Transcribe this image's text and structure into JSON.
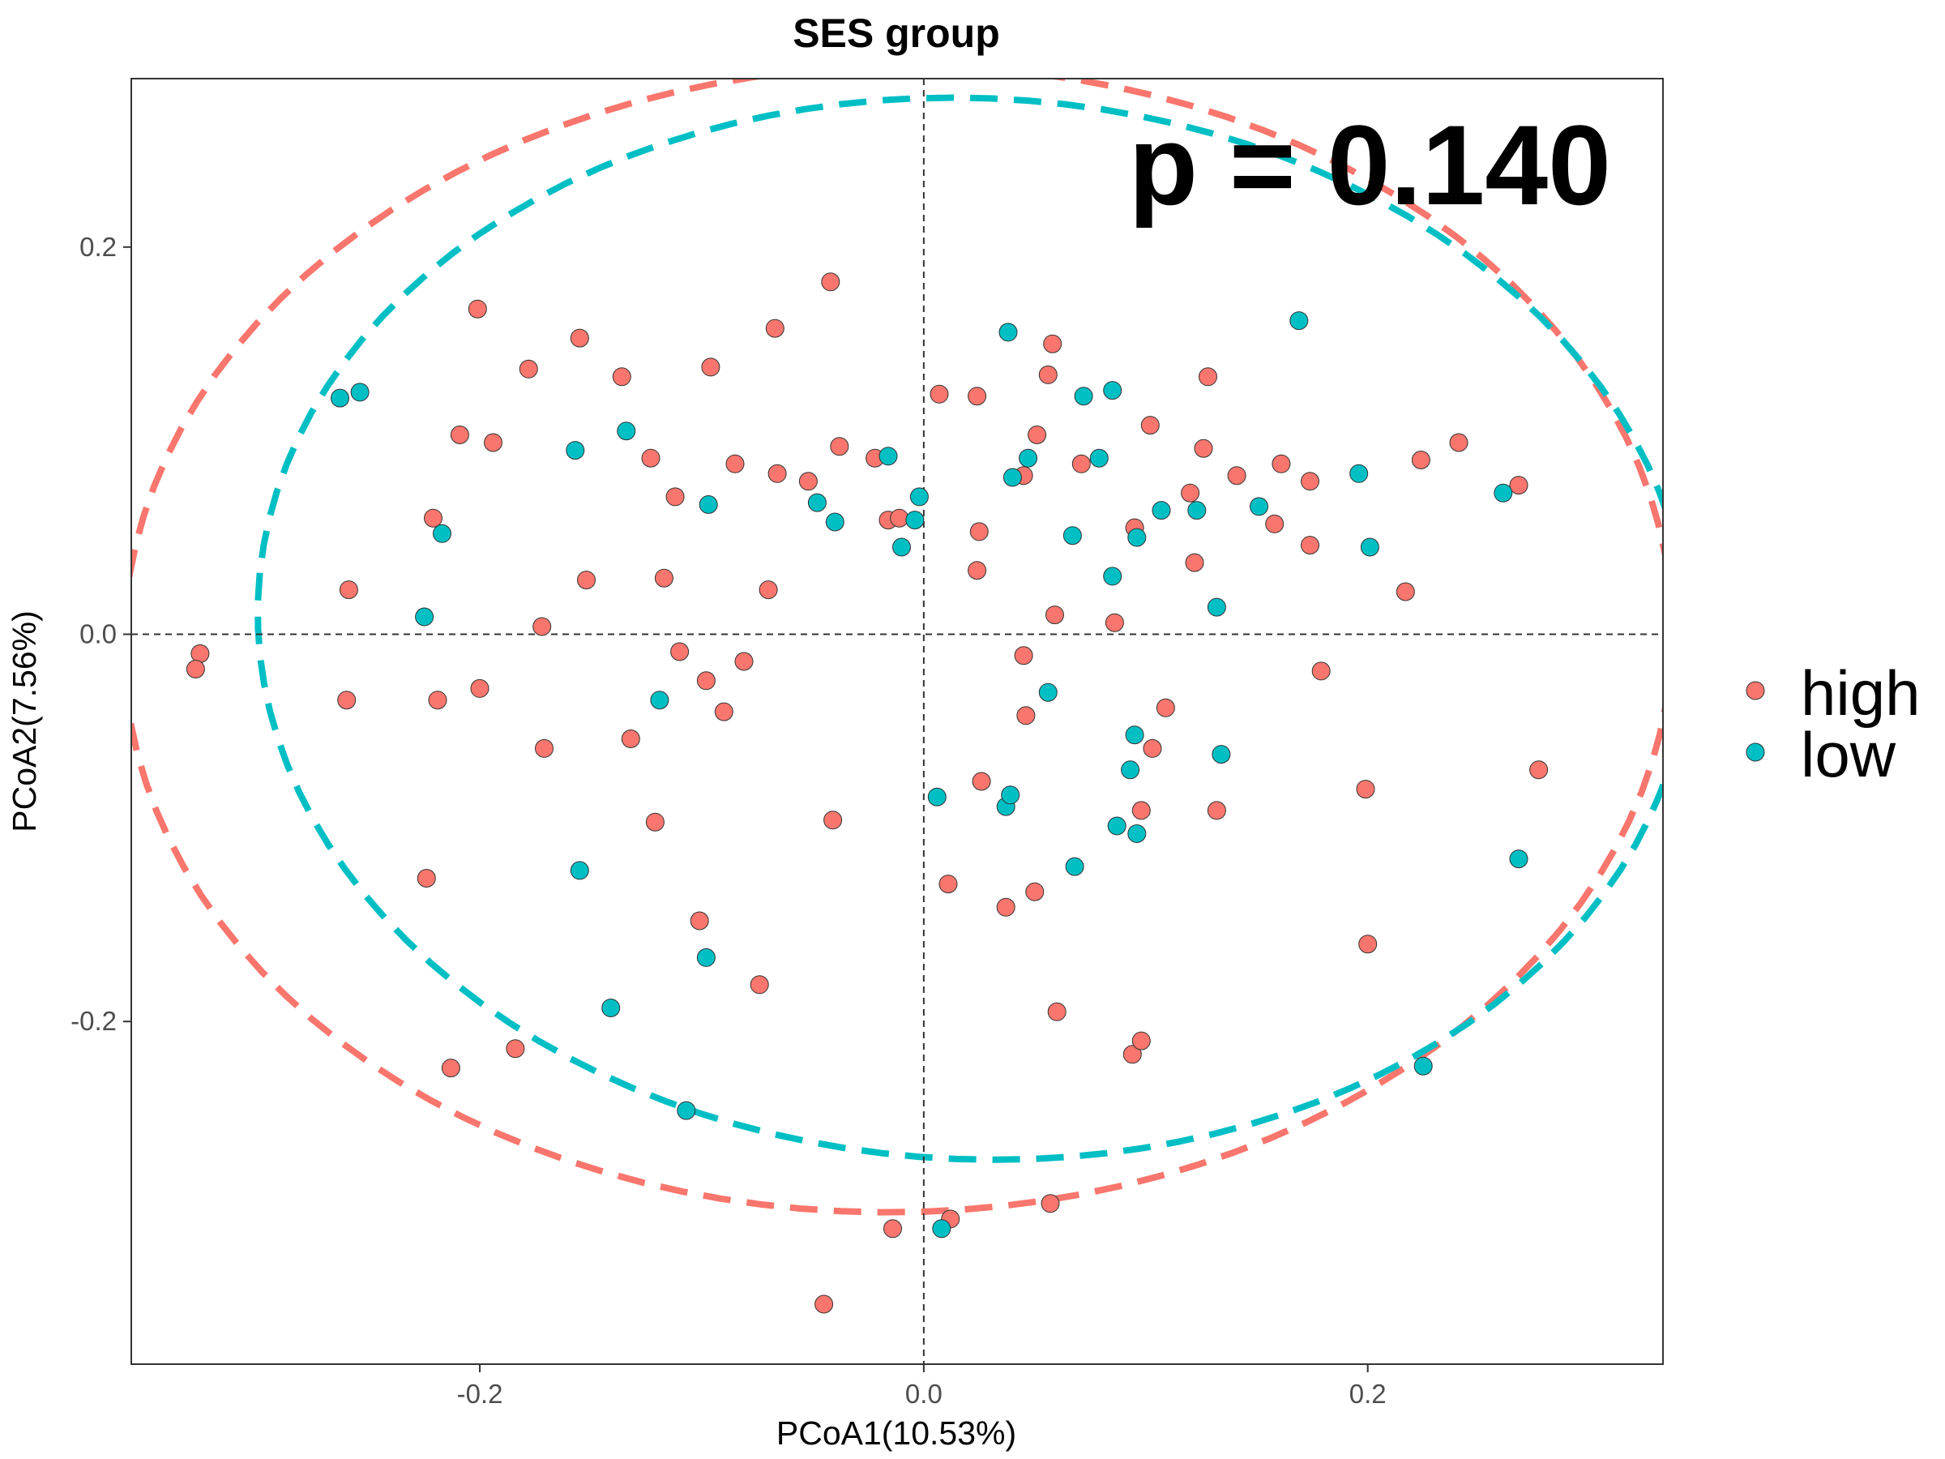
{
  "chart_data": {
    "type": "scatter",
    "title": "SES group",
    "xlabel": "PCoA1(10.53%)",
    "ylabel": "PCoA2(7.56%)",
    "xlim": [
      -0.357,
      0.333
    ],
    "ylim": [
      -0.377,
      0.287
    ],
    "x_ticks": [
      -0.2,
      0.0,
      0.2
    ],
    "x_tick_labels": [
      "-0.2",
      "0.0",
      "0.2"
    ],
    "y_ticks": [
      -0.2,
      0.0,
      0.2
    ],
    "y_tick_labels": [
      "-0.2",
      "0.0",
      "0.2"
    ],
    "reference_lines": {
      "x": 0,
      "y": 0,
      "style": "dashed"
    },
    "grid": false,
    "legend_position": "right",
    "annotation": "p = 0.140",
    "series": [
      {
        "name": "high",
        "color": "#F8766D",
        "points": [
          [
            -0.326,
            -0.01
          ],
          [
            -0.328,
            -0.018
          ],
          [
            -0.259,
            0.023
          ],
          [
            -0.26,
            -0.034
          ],
          [
            -0.221,
            0.06
          ],
          [
            -0.219,
            -0.034
          ],
          [
            -0.224,
            -0.126
          ],
          [
            -0.213,
            -0.224
          ],
          [
            -0.209,
            0.103
          ],
          [
            -0.201,
            0.168
          ],
          [
            -0.2,
            -0.028
          ],
          [
            -0.194,
            0.099
          ],
          [
            -0.184,
            -0.214
          ],
          [
            -0.178,
            0.137
          ],
          [
            -0.172,
            0.004
          ],
          [
            -0.171,
            -0.059
          ],
          [
            -0.155,
            0.153
          ],
          [
            -0.152,
            0.028
          ],
          [
            -0.136,
            0.133
          ],
          [
            -0.132,
            -0.054
          ],
          [
            -0.123,
            0.091
          ],
          [
            -0.121,
            -0.097
          ],
          [
            -0.117,
            0.029
          ],
          [
            -0.112,
            0.071
          ],
          [
            -0.11,
            -0.009
          ],
          [
            -0.101,
            -0.148
          ],
          [
            -0.098,
            -0.024
          ],
          [
            -0.096,
            0.138
          ],
          [
            -0.09,
            -0.04
          ],
          [
            -0.085,
            0.088
          ],
          [
            -0.081,
            -0.014
          ],
          [
            -0.074,
            -0.181
          ],
          [
            -0.07,
            0.023
          ],
          [
            -0.067,
            0.158
          ],
          [
            -0.066,
            0.083
          ],
          [
            -0.052,
            0.079
          ],
          [
            -0.045,
            -0.346
          ],
          [
            -0.042,
            0.182
          ],
          [
            -0.041,
            -0.096
          ],
          [
            -0.038,
            0.097
          ],
          [
            -0.022,
            0.091
          ],
          [
            -0.016,
            0.059
          ],
          [
            -0.011,
            0.06
          ],
          [
            -0.014,
            -0.307
          ],
          [
            0.007,
            0.124
          ],
          [
            0.011,
            -0.129
          ],
          [
            0.012,
            -0.302
          ],
          [
            0.024,
            0.123
          ],
          [
            0.024,
            0.033
          ],
          [
            0.025,
            0.053
          ],
          [
            0.026,
            -0.076
          ],
          [
            0.037,
            -0.141
          ],
          [
            0.045,
            0.082
          ],
          [
            0.045,
            -0.011
          ],
          [
            0.046,
            -0.042
          ],
          [
            0.05,
            -0.133
          ],
          [
            0.051,
            0.103
          ],
          [
            0.056,
            0.134
          ],
          [
            0.057,
            -0.294
          ],
          [
            0.058,
            0.15
          ],
          [
            0.059,
            0.01
          ],
          [
            0.06,
            -0.195
          ],
          [
            0.071,
            0.088
          ],
          [
            0.086,
            0.006
          ],
          [
            0.094,
            -0.217
          ],
          [
            0.095,
            0.055
          ],
          [
            0.098,
            -0.21
          ],
          [
            0.098,
            -0.091
          ],
          [
            0.102,
            0.108
          ],
          [
            0.103,
            -0.059
          ],
          [
            0.109,
            -0.038
          ],
          [
            0.12,
            0.073
          ],
          [
            0.122,
            0.037
          ],
          [
            0.126,
            0.096
          ],
          [
            0.128,
            0.133
          ],
          [
            0.132,
            -0.091
          ],
          [
            0.141,
            0.082
          ],
          [
            0.158,
            0.057
          ],
          [
            0.161,
            0.088
          ],
          [
            0.174,
            0.079
          ],
          [
            0.174,
            0.046
          ],
          [
            0.179,
            -0.019
          ],
          [
            0.199,
            -0.08
          ],
          [
            0.2,
            -0.16
          ],
          [
            0.217,
            0.022
          ],
          [
            0.224,
            0.09
          ],
          [
            0.241,
            0.099
          ],
          [
            0.268,
            0.077
          ],
          [
            0.277,
            -0.07
          ]
        ]
      },
      {
        "name": "low",
        "color": "#00BFC4",
        "points": [
          [
            -0.263,
            0.122
          ],
          [
            -0.254,
            0.125
          ],
          [
            -0.225,
            0.009
          ],
          [
            -0.217,
            0.052
          ],
          [
            -0.157,
            0.095
          ],
          [
            -0.155,
            -0.122
          ],
          [
            -0.141,
            -0.193
          ],
          [
            -0.134,
            0.105
          ],
          [
            -0.119,
            -0.034
          ],
          [
            -0.107,
            -0.246
          ],
          [
            -0.097,
            0.067
          ],
          [
            -0.098,
            -0.167
          ],
          [
            -0.048,
            0.068
          ],
          [
            -0.04,
            0.058
          ],
          [
            -0.016,
            0.092
          ],
          [
            -0.01,
            0.045
          ],
          [
            -0.004,
            0.059
          ],
          [
            -0.002,
            0.071
          ],
          [
            0.006,
            -0.084
          ],
          [
            0.008,
            -0.307
          ],
          [
            0.038,
            0.156
          ],
          [
            0.037,
            -0.089
          ],
          [
            0.039,
            -0.083
          ],
          [
            0.04,
            0.081
          ],
          [
            0.047,
            0.091
          ],
          [
            0.056,
            -0.03
          ],
          [
            0.067,
            0.051
          ],
          [
            0.068,
            -0.12
          ],
          [
            0.072,
            0.123
          ],
          [
            0.079,
            0.091
          ],
          [
            0.085,
            0.126
          ],
          [
            0.085,
            0.03
          ],
          [
            0.087,
            -0.099
          ],
          [
            0.093,
            -0.07
          ],
          [
            0.095,
            -0.052
          ],
          [
            0.096,
            0.05
          ],
          [
            0.096,
            -0.103
          ],
          [
            0.107,
            0.064
          ],
          [
            0.123,
            0.064
          ],
          [
            0.132,
            0.014
          ],
          [
            0.134,
            -0.062
          ],
          [
            0.151,
            0.066
          ],
          [
            0.169,
            0.162
          ],
          [
            0.196,
            0.083
          ],
          [
            0.201,
            0.045
          ],
          [
            0.225,
            -0.223
          ],
          [
            0.261,
            0.073
          ],
          [
            0.268,
            -0.116
          ]
        ]
      }
    ]
  }
}
